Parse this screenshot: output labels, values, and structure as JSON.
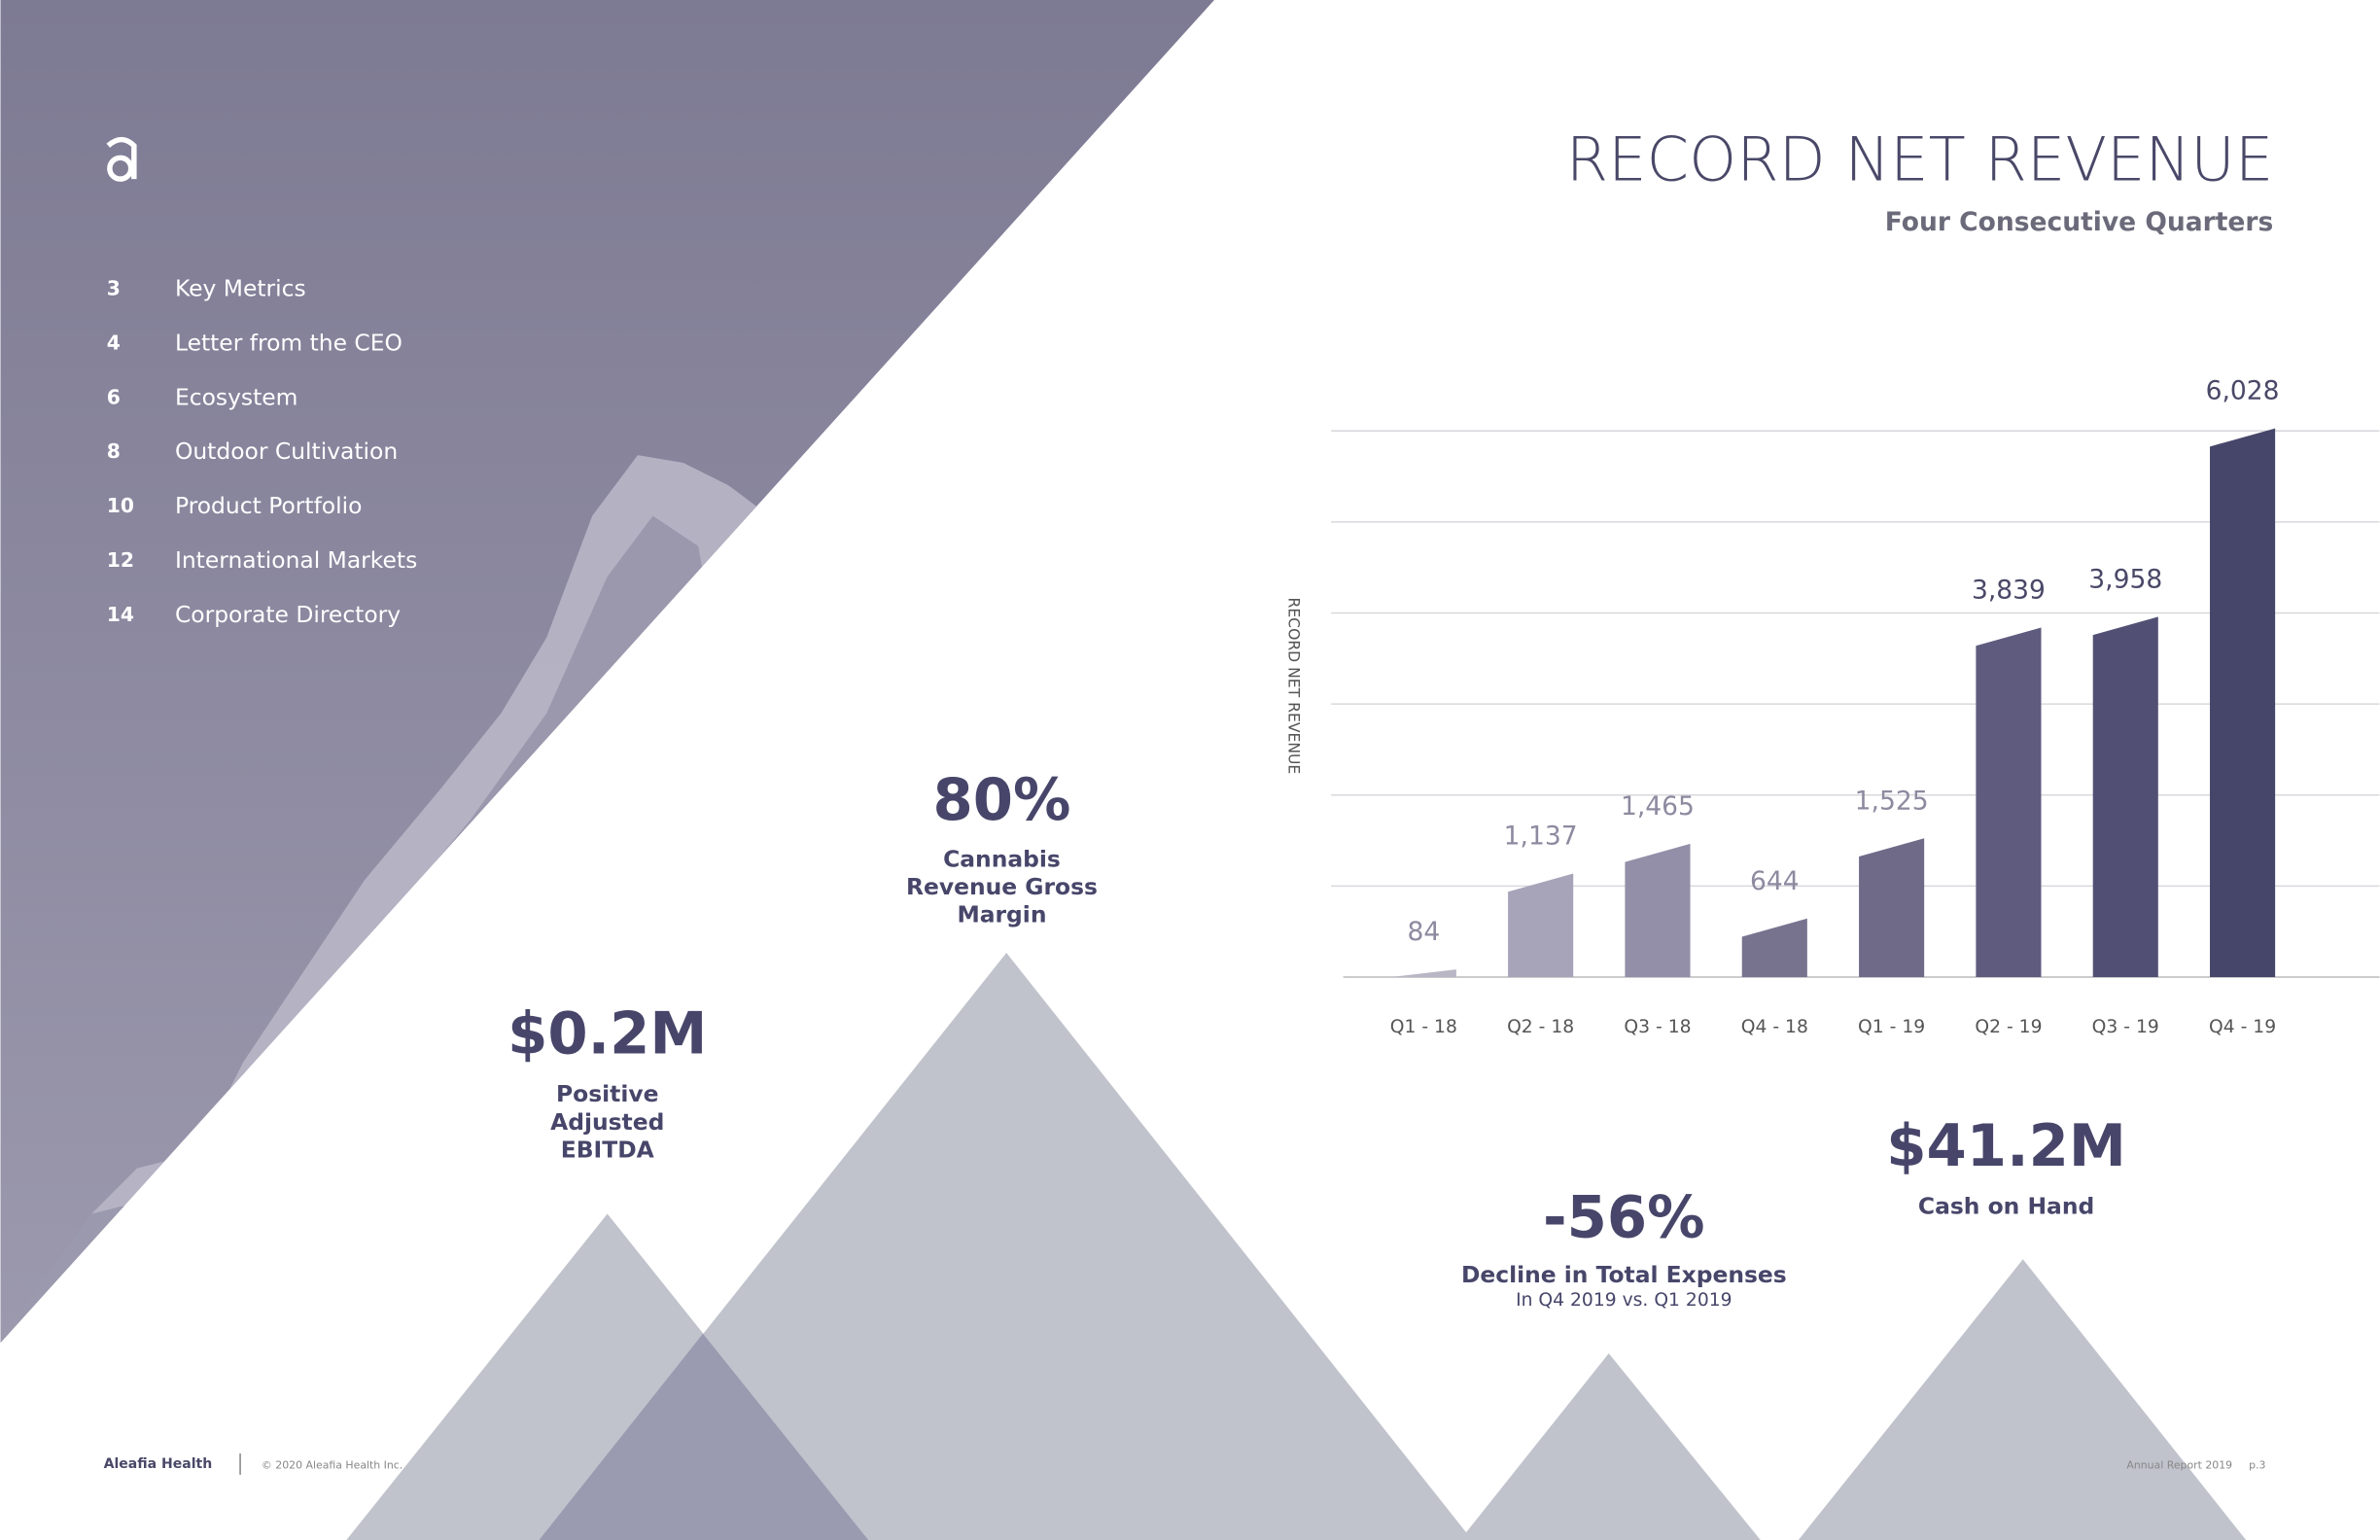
{
  "toc": [
    {
      "page": "3",
      "label": "Key Metrics"
    },
    {
      "page": "4",
      "label": "Letter from the CEO"
    },
    {
      "page": "6",
      "label": "Ecosystem"
    },
    {
      "page": "8",
      "label": "Outdoor Cultivation"
    },
    {
      "page": "10",
      "label": "Product Portfolio"
    },
    {
      "page": "12",
      "label": "International Markets"
    },
    {
      "page": "14",
      "label": "Corporate Directory"
    }
  ],
  "chart_data": {
    "type": "bar",
    "title": "RECORD NET REVENUE",
    "subtitle": "Four Consecutive Quarters",
    "y_label": "RECORD NET REVENUE",
    "categories": [
      "Q1 - 18",
      "Q2 - 18",
      "Q3 - 18",
      "Q4 - 18",
      "Q1 - 19",
      "Q2 - 19",
      "Q3 - 19",
      "Q4 - 19"
    ],
    "values": [
      84,
      1137,
      1465,
      644,
      1525,
      3839,
      3958,
      6028
    ],
    "value_labels": [
      "84",
      "1,137",
      "1,465",
      "644",
      "1,525",
      "3,839",
      "3,958",
      "6,028"
    ],
    "colors": [
      "#b9b6c6",
      "#a7a3b8",
      "#938fa8",
      "#77738f",
      "#6e6a88",
      "#5f5b7e",
      "#515074",
      "#46466a"
    ],
    "ylim": [
      0,
      6000
    ]
  },
  "metrics": [
    {
      "value": "$0.2M",
      "lines": [
        "Positive",
        "Adjusted",
        "EBITDA"
      ]
    },
    {
      "value": "80%",
      "lines": [
        "Cannabis",
        "Revenue Gross",
        "Margin"
      ]
    },
    {
      "value": "-56%",
      "lines": [
        "Decline in Total Expenses"
      ],
      "note": "In Q4 2019 vs. Q1 2019"
    },
    {
      "value": "$41.2M",
      "lines": [
        "Cash on Hand"
      ]
    }
  ],
  "footer": {
    "brand": "Aleafia Health",
    "copyright": "© 2020 Aleafia Health Inc.",
    "report": "Annual Report 2019",
    "page": "p.3"
  }
}
